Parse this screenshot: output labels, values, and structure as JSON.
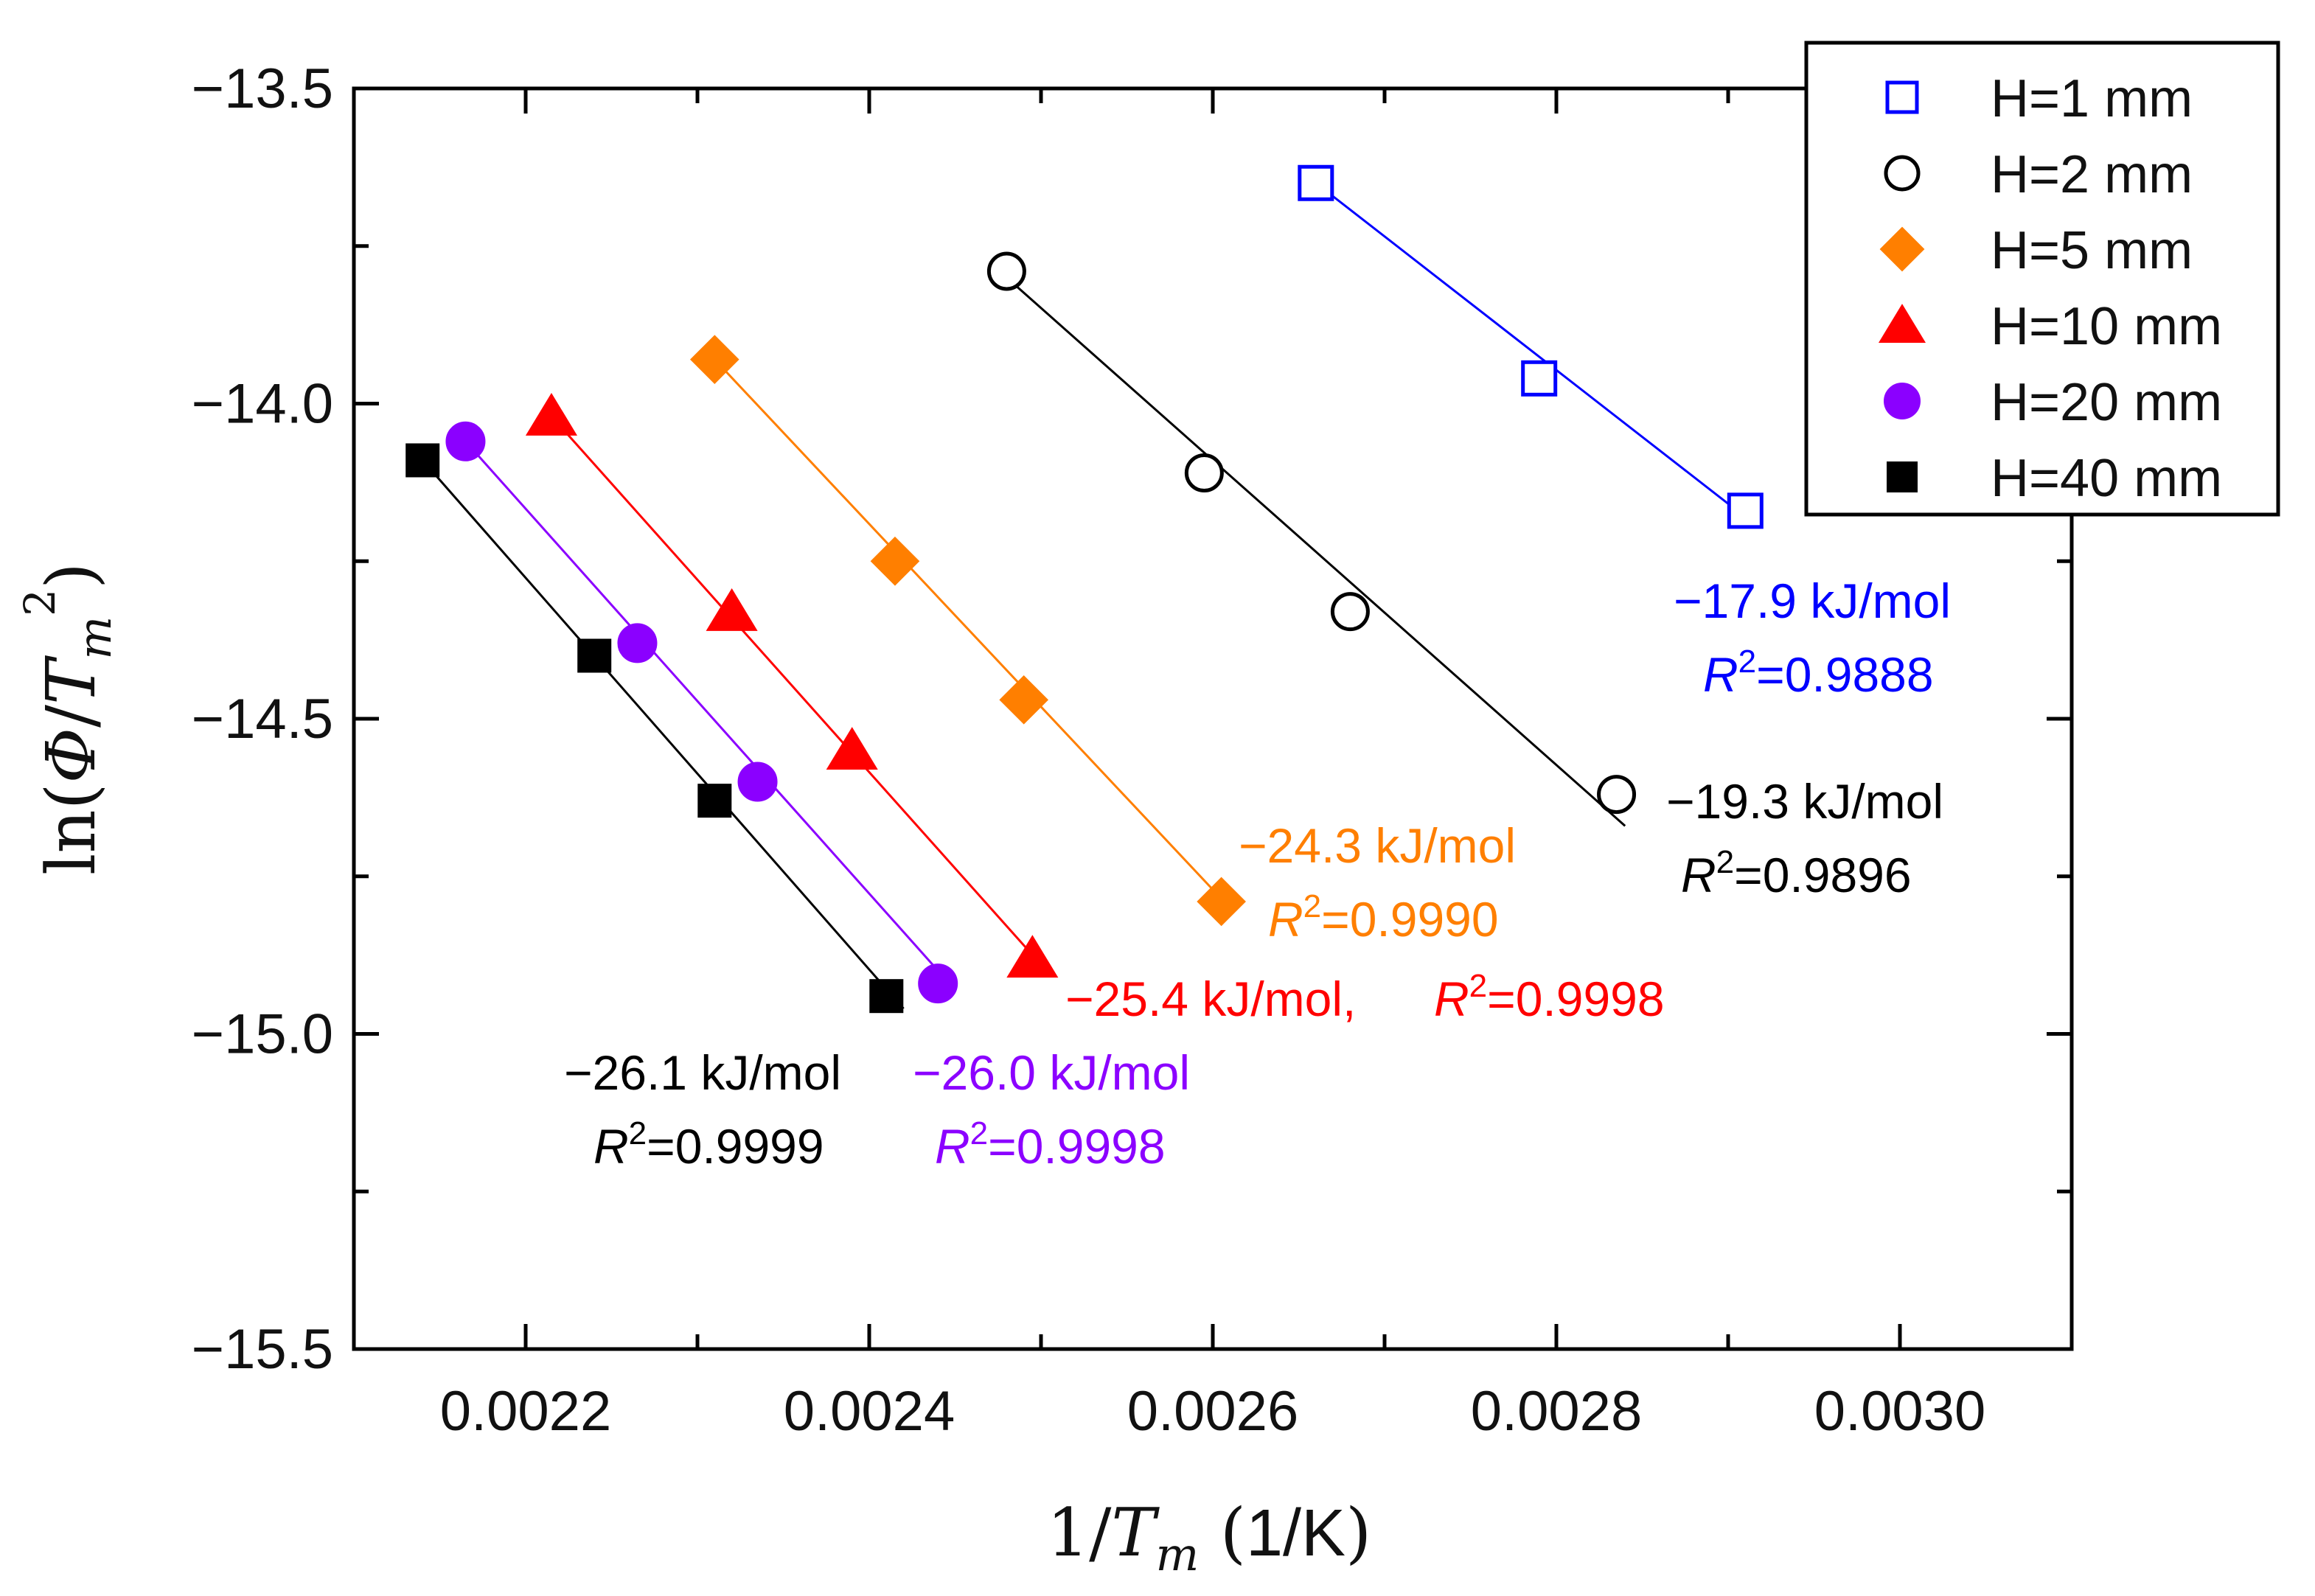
{
  "chart_data": {
    "type": "scatter",
    "xlabel": "1/T_m (1/K)",
    "ylabel": "ln(Φ/T_m²)",
    "xlim": [
      0.0021,
      0.0031
    ],
    "ylim": [
      -15.5,
      -13.5
    ],
    "xticks": [
      0.0022,
      0.0024,
      0.0026,
      0.0028,
      0.003
    ],
    "xtick_labels": [
      "0.0022",
      "0.0024",
      "0.0026",
      "0.0028",
      "0.0030"
    ],
    "yticks": [
      -13.5,
      -14.0,
      -14.5,
      -15.0,
      -15.5
    ],
    "ytick_labels": [
      "−13.5",
      "−14.0",
      "−14.5",
      "−15.0",
      "−15.5"
    ],
    "legend_position": "top-right",
    "grid": false,
    "series": [
      {
        "name": "H=1 mm",
        "color": "#0000ff",
        "marker": "square-open",
        "x": [
          0.00266,
          0.00279,
          0.00291
        ],
        "y": [
          -13.65,
          -13.96,
          -14.17
        ],
        "fit_line": {
          "x": [
            0.00266,
            0.00291
          ],
          "y": [
            -13.65,
            -14.18
          ]
        },
        "annotation": {
          "energy": "−17.9 kJ/mol",
          "r2_label": "R",
          "r2_sup": "2",
          "r2_value": "=0.9888"
        }
      },
      {
        "name": "H=2 mm",
        "color": "#000000",
        "marker": "circle-open",
        "x": [
          0.00248,
          0.002595,
          0.00268,
          0.002835
        ],
        "y": [
          -13.79,
          -14.11,
          -14.33,
          -14.62
        ],
        "fit_line": {
          "x": [
            0.00248,
            0.00284
          ],
          "y": [
            -13.8,
            -14.67
          ]
        },
        "annotation": {
          "energy": "−19.3 kJ/mol",
          "r2_label": "R",
          "r2_sup": "2",
          "r2_value": "=0.9896"
        }
      },
      {
        "name": "H=5 mm",
        "color": "#ff7f00",
        "marker": "diamond",
        "x": [
          0.00231,
          0.002415,
          0.00249,
          0.002605
        ],
        "y": [
          -13.93,
          -14.25,
          -14.47,
          -14.79
        ],
        "fit_line": {
          "x": [
            0.00231,
            0.00261
          ],
          "y": [
            -13.93,
            -14.8
          ]
        },
        "annotation": {
          "energy": "−24.3 kJ/mol",
          "r2_label": "R",
          "r2_sup": "2",
          "r2_value": "=0.9990"
        }
      },
      {
        "name": "H=10 mm",
        "color": "#ff0000",
        "marker": "triangle",
        "x": [
          0.002215,
          0.00232,
          0.00239,
          0.002495
        ],
        "y": [
          -14.02,
          -14.33,
          -14.55,
          -14.88
        ],
        "fit_line": {
          "x": [
            0.002215,
            0.0025
          ],
          "y": [
            -14.02,
            -14.89
          ]
        },
        "annotation": {
          "energy": "−25.4 kJ/mol,",
          "r2_label": "R",
          "r2_sup": "2",
          "r2_value": "=0.9998"
        }
      },
      {
        "name": "H=20 mm",
        "color": "#8b00ff",
        "marker": "circle",
        "x": [
          0.002165,
          0.002265,
          0.002335,
          0.00244
        ],
        "y": [
          -14.06,
          -14.38,
          -14.6,
          -14.92
        ],
        "fit_line": {
          "x": [
            0.002165,
            0.00245
          ],
          "y": [
            -14.06,
            -14.93
          ]
        },
        "annotation": {
          "energy": "−26.0 kJ/mol",
          "r2_label": "R",
          "r2_sup": "2",
          "r2_value": "=0.9998"
        }
      },
      {
        "name": "H=40 mm",
        "color": "#000000",
        "marker": "square",
        "x": [
          0.00214,
          0.00224,
          0.00231,
          0.00241
        ],
        "y": [
          -14.09,
          -14.4,
          -14.63,
          -14.94
        ],
        "fit_line": {
          "x": [
            0.00214,
            0.00242
          ],
          "y": [
            -14.09,
            -14.96
          ]
        },
        "annotation": {
          "energy": "−26.1 kJ/mol",
          "r2_label": "R",
          "r2_sup": "2",
          "r2_value": "=0.9999"
        }
      }
    ]
  }
}
